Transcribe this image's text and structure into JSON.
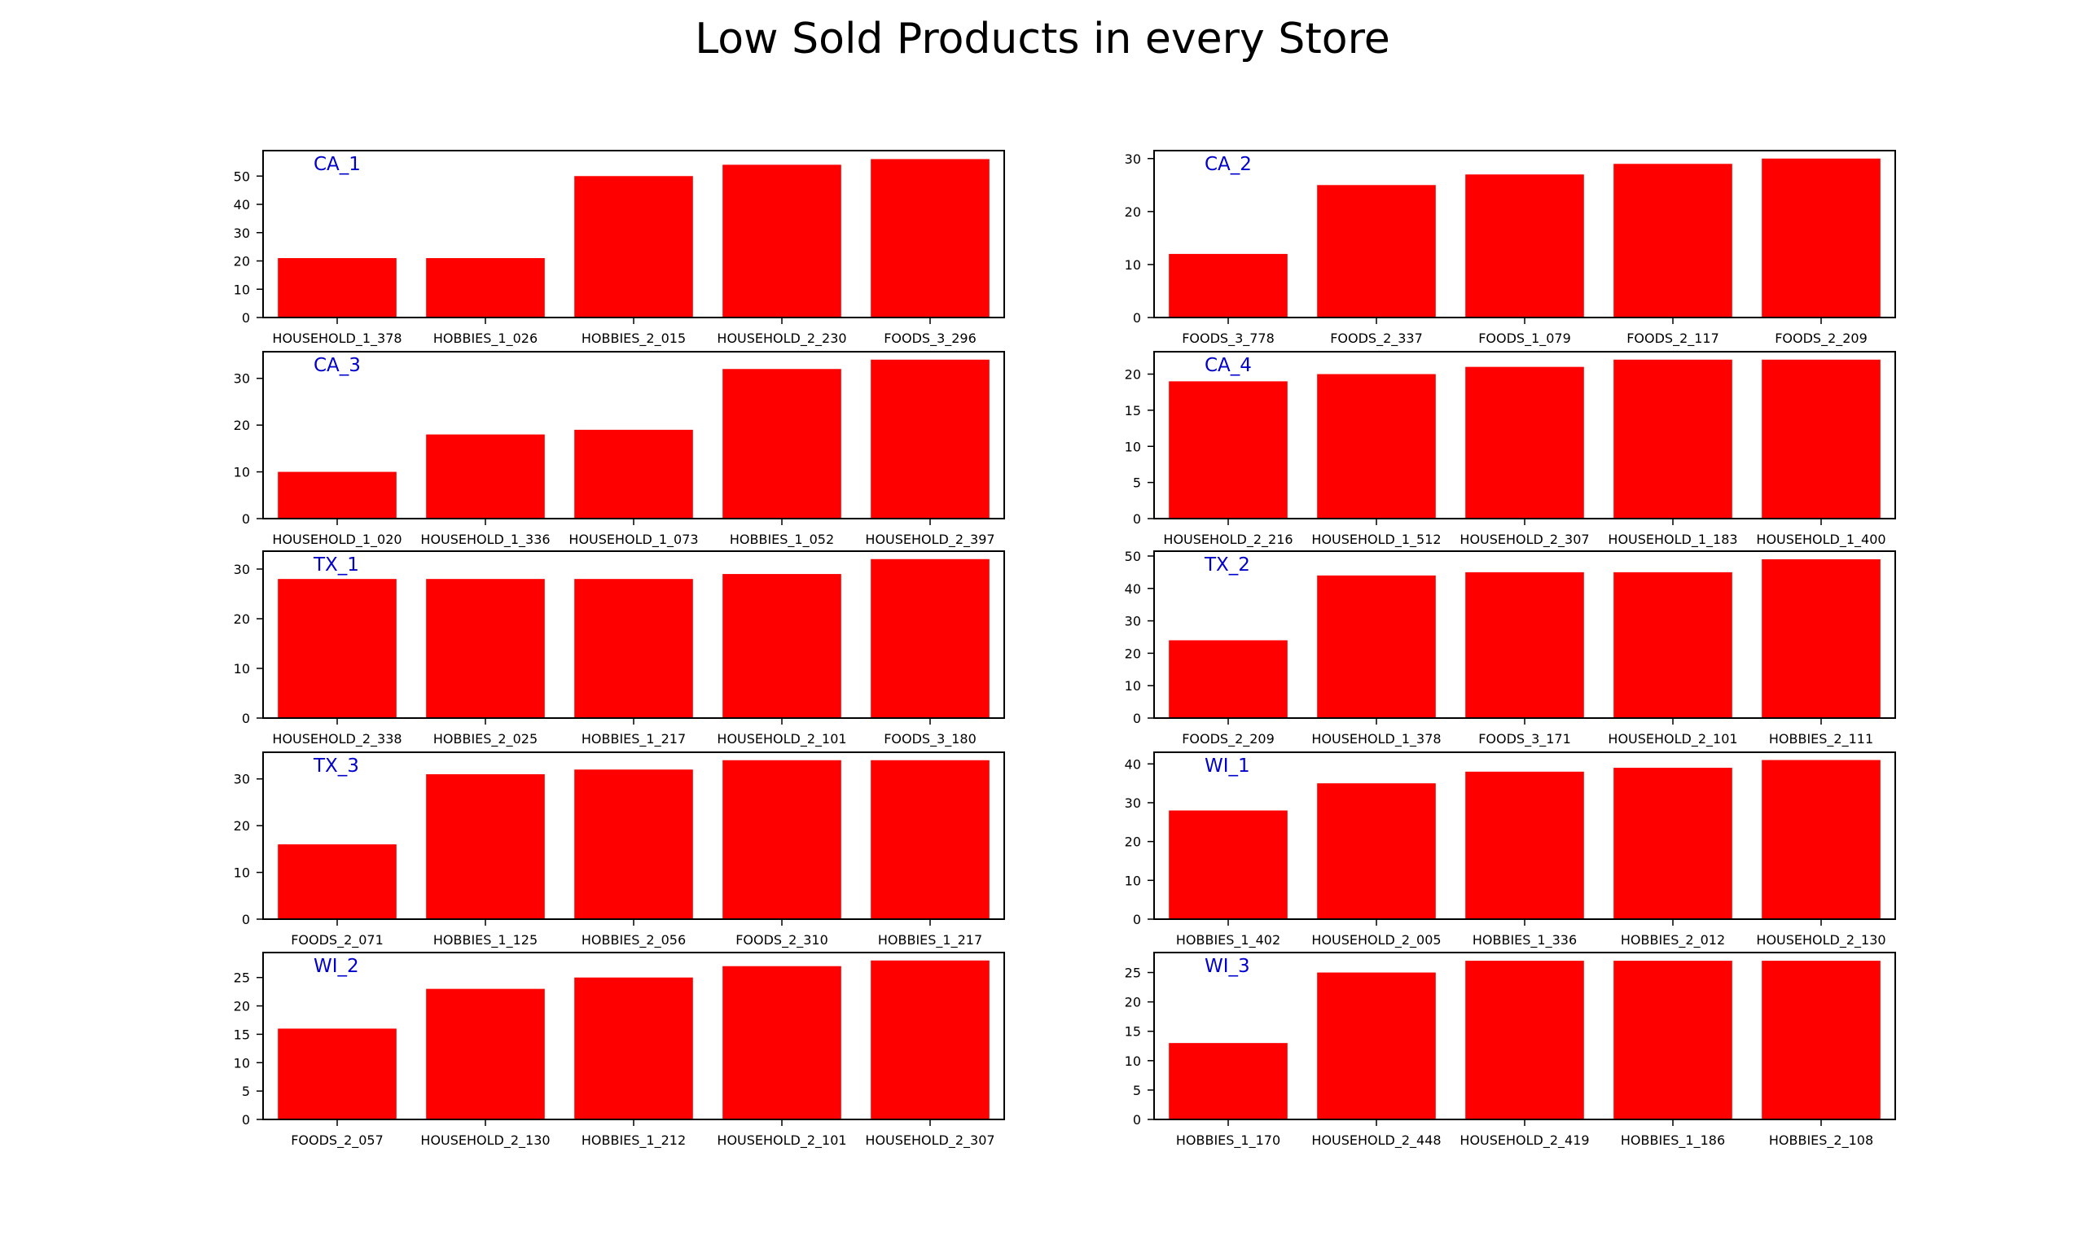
{
  "title": "Low Sold Products in every Store",
  "colors": {
    "bar": "#ff0000",
    "store_label": "#0000cc",
    "axis": "#000000"
  },
  "chart_data": [
    {
      "type": "bar",
      "store": "CA_1",
      "categories": [
        "HOUSEHOLD_1_378",
        "HOBBIES_1_026",
        "HOBBIES_2_015",
        "HOUSEHOLD_2_230",
        "FOODS_3_296"
      ],
      "values": [
        21,
        21,
        50,
        54,
        56
      ],
      "ylim": [
        0,
        59
      ],
      "yticks": [
        0,
        10,
        20,
        30,
        40,
        50
      ]
    },
    {
      "type": "bar",
      "store": "CA_2",
      "categories": [
        "FOODS_3_778",
        "FOODS_2_337",
        "FOODS_1_079",
        "FOODS_2_117",
        "FOODS_2_209"
      ],
      "values": [
        12,
        25,
        27,
        29,
        30
      ],
      "ylim": [
        0,
        31.5
      ],
      "yticks": [
        0,
        10,
        20,
        30
      ]
    },
    {
      "type": "bar",
      "store": "CA_3",
      "categories": [
        "HOUSEHOLD_1_020",
        "HOUSEHOLD_1_336",
        "HOUSEHOLD_1_073",
        "HOBBIES_1_052",
        "HOUSEHOLD_2_397"
      ],
      "values": [
        10,
        18,
        19,
        32,
        34
      ],
      "ylim": [
        0,
        35.7
      ],
      "yticks": [
        0,
        10,
        20,
        30
      ]
    },
    {
      "type": "bar",
      "store": "CA_4",
      "categories": [
        "HOUSEHOLD_2_216",
        "HOUSEHOLD_1_512",
        "HOUSEHOLD_2_307",
        "HOUSEHOLD_1_183",
        "HOUSEHOLD_1_400"
      ],
      "values": [
        19,
        20,
        21,
        22,
        22
      ],
      "ylim": [
        0,
        23.1
      ],
      "yticks": [
        0,
        5,
        10,
        15,
        20
      ]
    },
    {
      "type": "bar",
      "store": "TX_1",
      "categories": [
        "HOUSEHOLD_2_338",
        "HOBBIES_2_025",
        "HOBBIES_1_217",
        "HOUSEHOLD_2_101",
        "FOODS_3_180"
      ],
      "values": [
        28,
        28,
        28,
        29,
        32
      ],
      "ylim": [
        0,
        33.6
      ],
      "yticks": [
        0,
        10,
        20,
        30
      ]
    },
    {
      "type": "bar",
      "store": "TX_2",
      "categories": [
        "FOODS_2_209",
        "HOUSEHOLD_1_378",
        "FOODS_3_171",
        "HOUSEHOLD_2_101",
        "HOBBIES_2_111"
      ],
      "values": [
        24,
        44,
        45,
        45,
        49
      ],
      "ylim": [
        0,
        51.5
      ],
      "yticks": [
        0,
        10,
        20,
        30,
        40,
        50
      ]
    },
    {
      "type": "bar",
      "store": "TX_3",
      "categories": [
        "FOODS_2_071",
        "HOBBIES_1_125",
        "HOBBIES_2_056",
        "FOODS_2_310",
        "HOBBIES_1_217"
      ],
      "values": [
        16,
        31,
        32,
        34,
        34
      ],
      "ylim": [
        0,
        35.7
      ],
      "yticks": [
        0,
        10,
        20,
        30
      ]
    },
    {
      "type": "bar",
      "store": "WI_1",
      "categories": [
        "HOBBIES_1_402",
        "HOUSEHOLD_2_005",
        "HOBBIES_1_336",
        "HOBBIES_2_012",
        "HOUSEHOLD_2_130"
      ],
      "values": [
        28,
        35,
        38,
        39,
        41
      ],
      "ylim": [
        0,
        43
      ],
      "yticks": [
        0,
        10,
        20,
        30,
        40
      ]
    },
    {
      "type": "bar",
      "store": "WI_2",
      "categories": [
        "FOODS_2_057",
        "HOUSEHOLD_2_130",
        "HOBBIES_1_212",
        "HOUSEHOLD_2_101",
        "HOUSEHOLD_2_307"
      ],
      "values": [
        16,
        23,
        25,
        27,
        28
      ],
      "ylim": [
        0,
        29.4
      ],
      "yticks": [
        0,
        5,
        10,
        15,
        20,
        25
      ]
    },
    {
      "type": "bar",
      "store": "WI_3",
      "categories": [
        "HOBBIES_1_170",
        "HOUSEHOLD_2_448",
        "HOUSEHOLD_2_419",
        "HOBBIES_1_186",
        "HOBBIES_2_108"
      ],
      "values": [
        13,
        25,
        27,
        27,
        27
      ],
      "ylim": [
        0,
        28.4
      ],
      "yticks": [
        0,
        5,
        10,
        15,
        20,
        25
      ]
    }
  ]
}
